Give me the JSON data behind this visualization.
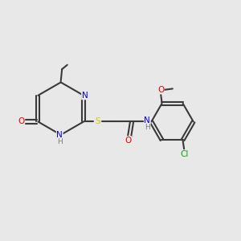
{
  "bg_color": "#e8e8e8",
  "bond_color": "#3a3a3a",
  "bond_width": 1.5,
  "atom_colors": {
    "N": "#0000ee",
    "O": "#ee0000",
    "S": "#cccc00",
    "Cl": "#00aa00",
    "C": "#3a3a3a",
    "H": "#7a7a7a"
  },
  "font_size": 7.5,
  "font_size_small": 6.5
}
